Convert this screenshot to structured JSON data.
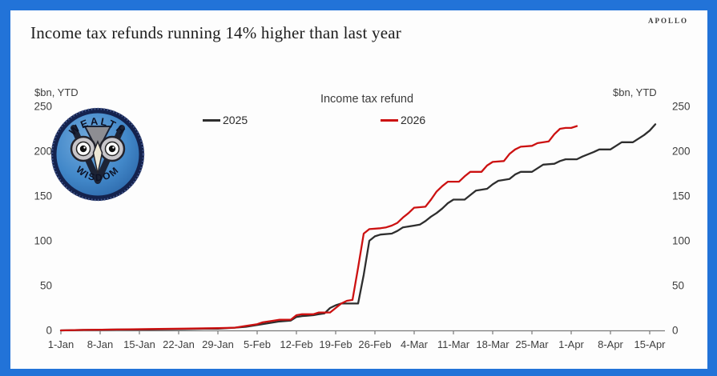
{
  "header": {
    "title": "Income tax refunds running 14% higher than last year",
    "brand": "APOLLO"
  },
  "watermark": {
    "top_text": "WEALTH",
    "bottom_text": "WISDOM"
  },
  "colors": {
    "border": "#2273d8",
    "axis": "#7a7a7a",
    "tick_text": "#3f3f3f",
    "series_2025": "#2e2e2e",
    "series_2026": "#cc1111",
    "logo_ring": "#14224d",
    "logo_badge": "#3f86c9"
  },
  "chart_data": {
    "type": "line",
    "title": "Income tax refund",
    "unit_label_left": "$bn, YTD",
    "unit_label_right": "$bn, YTD",
    "legend_position": "top",
    "grid": false,
    "ylim": [
      0,
      250
    ],
    "y_ticks": [
      0,
      50,
      100,
      150,
      200,
      250
    ],
    "x_tick_labels": [
      "1-Jan",
      "8-Jan",
      "15-Jan",
      "22-Jan",
      "29-Jan",
      "5-Feb",
      "12-Feb",
      "19-Feb",
      "26-Feb",
      "4-Mar",
      "11-Mar",
      "18-Mar",
      "25-Mar",
      "1-Apr",
      "8-Apr",
      "15-Apr"
    ],
    "x_tick_days": [
      0,
      7,
      14,
      21,
      28,
      35,
      42,
      49,
      56,
      63,
      70,
      77,
      84,
      91,
      98,
      105
    ],
    "x_unit": "days since 1-Jan",
    "series": [
      {
        "name": "2025",
        "color": "#2e2e2e",
        "points": [
          [
            0,
            0
          ],
          [
            4,
            0.5
          ],
          [
            10,
            1
          ],
          [
            16,
            1
          ],
          [
            22,
            1.5
          ],
          [
            26,
            2
          ],
          [
            28,
            2
          ],
          [
            31,
            3
          ],
          [
            33,
            4
          ],
          [
            35,
            6
          ],
          [
            37,
            8
          ],
          [
            39,
            10
          ],
          [
            41,
            11
          ],
          [
            42,
            15
          ],
          [
            43,
            16
          ],
          [
            45,
            17
          ],
          [
            46,
            18
          ],
          [
            47,
            19
          ],
          [
            48,
            25
          ],
          [
            49,
            28
          ],
          [
            50,
            30
          ],
          [
            53,
            30
          ],
          [
            54,
            62
          ],
          [
            55,
            100
          ],
          [
            56,
            105
          ],
          [
            57,
            107
          ],
          [
            59,
            108
          ],
          [
            60,
            111
          ],
          [
            61,
            115
          ],
          [
            63,
            117
          ],
          [
            64,
            118
          ],
          [
            65,
            122
          ],
          [
            66,
            127
          ],
          [
            67,
            131
          ],
          [
            68,
            136
          ],
          [
            69,
            142
          ],
          [
            70,
            146
          ],
          [
            72,
            146
          ],
          [
            73,
            151
          ],
          [
            74,
            156
          ],
          [
            76,
            158
          ],
          [
            77,
            163
          ],
          [
            78,
            167
          ],
          [
            80,
            169
          ],
          [
            81,
            174
          ],
          [
            82,
            177
          ],
          [
            84,
            177
          ],
          [
            85,
            181
          ],
          [
            86,
            185
          ],
          [
            88,
            186
          ],
          [
            89,
            189
          ],
          [
            90,
            191
          ],
          [
            92,
            191
          ],
          [
            93,
            194
          ],
          [
            95,
            199
          ],
          [
            96,
            202
          ],
          [
            98,
            202
          ],
          [
            99,
            206
          ],
          [
            100,
            210
          ],
          [
            102,
            210
          ],
          [
            103,
            214
          ],
          [
            104,
            218
          ],
          [
            105,
            223
          ],
          [
            106,
            230
          ]
        ]
      },
      {
        "name": "2026",
        "color": "#cc1111",
        "points": [
          [
            0,
            0
          ],
          [
            4,
            0.5
          ],
          [
            10,
            1
          ],
          [
            16,
            1.5
          ],
          [
            22,
            2
          ],
          [
            28,
            2.5
          ],
          [
            31,
            3
          ],
          [
            33,
            5
          ],
          [
            35,
            7
          ],
          [
            36,
            9
          ],
          [
            38,
            11
          ],
          [
            39,
            12
          ],
          [
            41,
            12
          ],
          [
            42,
            17
          ],
          [
            43,
            18
          ],
          [
            45,
            18
          ],
          [
            46,
            20
          ],
          [
            48,
            20
          ],
          [
            49,
            25
          ],
          [
            50,
            30
          ],
          [
            51,
            33
          ],
          [
            52,
            34
          ],
          [
            53,
            70
          ],
          [
            54,
            108
          ],
          [
            55,
            113
          ],
          [
            57,
            114
          ],
          [
            58,
            115
          ],
          [
            59,
            117
          ],
          [
            60,
            120
          ],
          [
            61,
            126
          ],
          [
            62,
            131
          ],
          [
            63,
            137
          ],
          [
            65,
            138
          ],
          [
            66,
            146
          ],
          [
            67,
            155
          ],
          [
            68,
            161
          ],
          [
            69,
            166
          ],
          [
            71,
            166
          ],
          [
            72,
            172
          ],
          [
            73,
            177
          ],
          [
            75,
            177
          ],
          [
            76,
            184
          ],
          [
            77,
            188
          ],
          [
            79,
            189
          ],
          [
            80,
            197
          ],
          [
            81,
            202
          ],
          [
            82,
            205
          ],
          [
            84,
            206
          ],
          [
            85,
            209
          ],
          [
            87,
            211
          ],
          [
            88,
            219
          ],
          [
            89,
            225
          ],
          [
            90,
            226
          ],
          [
            91,
            226
          ],
          [
            92,
            228
          ]
        ]
      }
    ]
  }
}
